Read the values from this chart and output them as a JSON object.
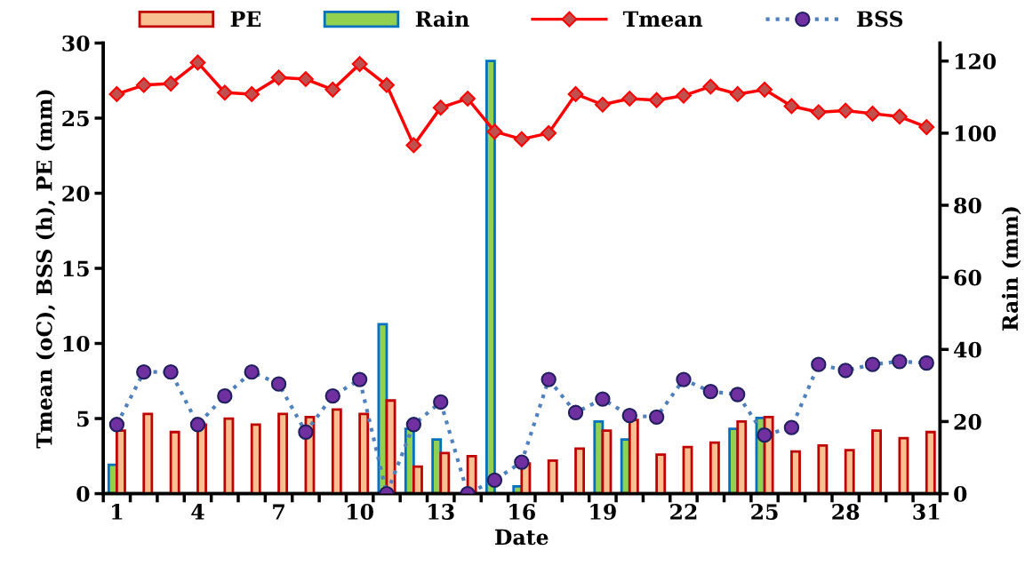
{
  "chart_data": {
    "type": "bar",
    "xlabel": "Date",
    "ylabel": "Tmean (oC), BSS (h), PE (mm)",
    "y2label": "Rain (mm)",
    "categories": [
      "1",
      null,
      null,
      "4",
      null,
      null,
      "7",
      null,
      null,
      "10",
      null,
      null,
      "13",
      null,
      null,
      "16",
      null,
      null,
      "19",
      null,
      null,
      "22",
      null,
      null,
      "25",
      null,
      null,
      "28",
      null,
      null,
      "31"
    ],
    "ylim": [
      0,
      30
    ],
    "yticks": [
      0,
      5,
      10,
      15,
      20,
      25,
      30
    ],
    "y2lim": [
      0,
      125
    ],
    "y2ticks": [
      0,
      20,
      40,
      60,
      80,
      100,
      120
    ],
    "legend": "top",
    "grid": false,
    "series": [
      {
        "name": "PE",
        "color": "#f8c090",
        "values": [
          4.2,
          5.3,
          4.1,
          4.6,
          5.0,
          4.6,
          5.3,
          5.1,
          5.6,
          5.3,
          6.2,
          1.8,
          2.7,
          2.5,
          null,
          2.0,
          2.2,
          3.0,
          4.2,
          4.9,
          2.6,
          3.1,
          3.4,
          4.8,
          5.1,
          2.8,
          3.2,
          2.9,
          4.2,
          3.7,
          4.1
        ]
      },
      {
        "name": "Rain",
        "axis": "y2",
        "color": "#92d050",
        "values": [
          8,
          null,
          null,
          null,
          null,
          null,
          null,
          null,
          null,
          null,
          47,
          18,
          15,
          null,
          120,
          2,
          null,
          null,
          20,
          15,
          null,
          null,
          null,
          18,
          21,
          null,
          null,
          null,
          null,
          null,
          null
        ]
      },
      {
        "name": "Tmean",
        "type": "line",
        "color": "#ff0000",
        "marker": "diamond",
        "line_style": "solid",
        "values": [
          26.6,
          27.2,
          27.3,
          28.7,
          26.7,
          26.6,
          27.7,
          27.6,
          26.9,
          28.6,
          27.2,
          23.2,
          25.7,
          26.3,
          24.1,
          23.6,
          24.0,
          26.6,
          25.9,
          26.3,
          26.2,
          26.5,
          27.1,
          26.6,
          26.9,
          25.8,
          25.4,
          25.5,
          25.3,
          25.1,
          24.4
        ]
      },
      {
        "name": "BSS",
        "type": "line",
        "color": "#4f81bd",
        "marker": "circle",
        "line_style": "dotted",
        "values": [
          4.6,
          8.1,
          8.1,
          4.6,
          6.5,
          8.1,
          7.3,
          4.1,
          6.5,
          7.6,
          0.0,
          4.6,
          6.1,
          0.0,
          0.9,
          2.1,
          7.6,
          5.4,
          6.3,
          5.2,
          5.1,
          7.6,
          6.8,
          6.6,
          3.9,
          4.4,
          8.6,
          8.2,
          8.6,
          8.8,
          8.7
        ]
      }
    ]
  }
}
